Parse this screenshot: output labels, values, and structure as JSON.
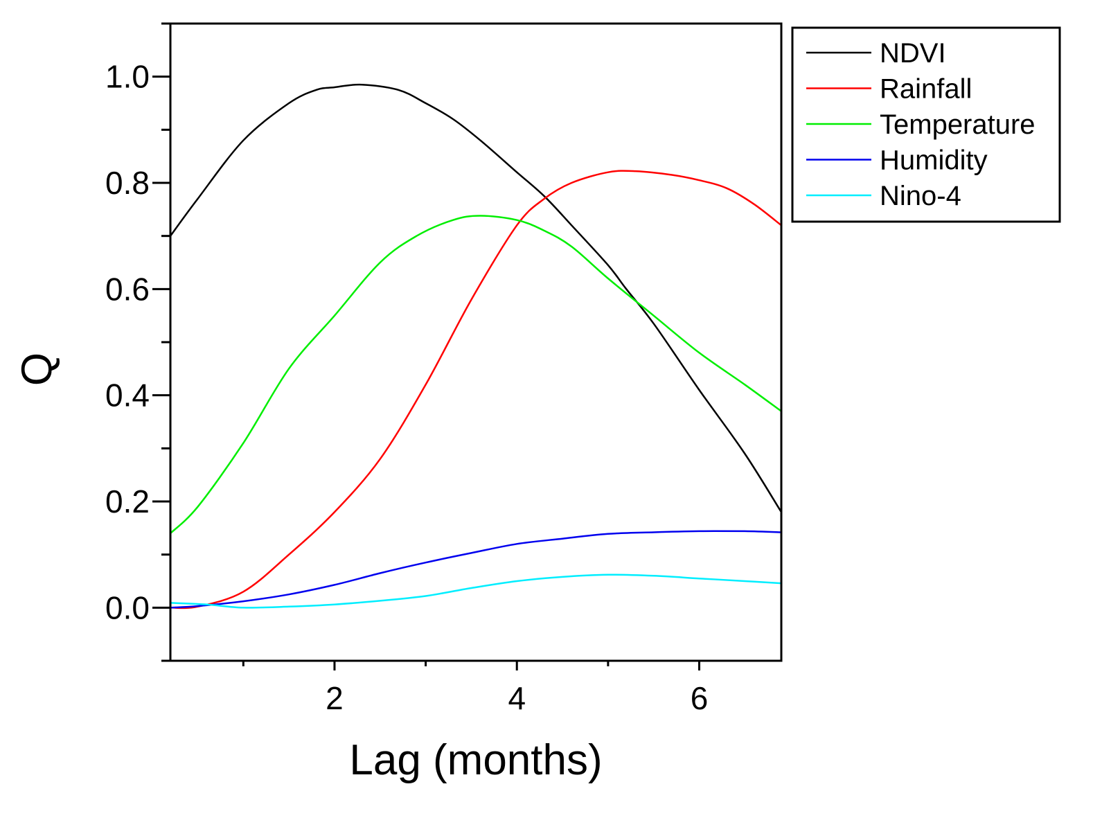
{
  "chart_data": {
    "type": "line",
    "title": "",
    "xlabel": "Lag (months)",
    "ylabel": "Q",
    "xlim": [
      0.2,
      6.9
    ],
    "ylim": [
      -0.1,
      1.1
    ],
    "xticks": [
      2,
      4,
      6
    ],
    "xtick_labels": [
      "2",
      "4",
      "6"
    ],
    "xminor": [
      1,
      3,
      5
    ],
    "yticks": [
      0.0,
      0.2,
      0.4,
      0.6,
      0.8,
      1.0
    ],
    "ytick_labels": [
      "0.0",
      "0.2",
      "0.4",
      "0.6",
      "0.8",
      "1.0"
    ],
    "yminor": [
      -0.1,
      0.1,
      0.3,
      0.5,
      0.7,
      0.9,
      1.1
    ],
    "grid": false,
    "legend_position": "outside-top-right",
    "series": [
      {
        "name": "NDVI",
        "color": "#000000",
        "x": [
          0.2,
          0.5,
          1.0,
          1.5,
          1.8,
          2.0,
          2.3,
          2.7,
          3.0,
          3.3,
          3.6,
          4.0,
          4.3,
          4.6,
          5.0,
          5.2,
          5.5,
          6.0,
          6.5,
          6.9
        ],
        "y": [
          0.7,
          0.77,
          0.88,
          0.95,
          0.975,
          0.98,
          0.985,
          0.975,
          0.95,
          0.92,
          0.88,
          0.82,
          0.775,
          0.72,
          0.645,
          0.6,
          0.535,
          0.41,
          0.29,
          0.18
        ]
      },
      {
        "name": "Rainfall",
        "color": "#ff0000",
        "x": [
          0.2,
          0.5,
          1.0,
          1.5,
          2.0,
          2.5,
          3.0,
          3.5,
          4.0,
          4.3,
          4.6,
          5.0,
          5.3,
          5.7,
          6.0,
          6.3,
          6.6,
          6.9
        ],
        "y": [
          0.0,
          0.002,
          0.03,
          0.1,
          0.18,
          0.28,
          0.42,
          0.58,
          0.72,
          0.77,
          0.8,
          0.82,
          0.822,
          0.815,
          0.805,
          0.79,
          0.76,
          0.72
        ]
      },
      {
        "name": "Temperature",
        "color": "#00ee00",
        "x": [
          0.2,
          0.5,
          1.0,
          1.5,
          2.0,
          2.5,
          2.9,
          3.3,
          3.6,
          4.0,
          4.3,
          4.6,
          5.0,
          5.5,
          6.0,
          6.5,
          6.9
        ],
        "y": [
          0.14,
          0.19,
          0.31,
          0.45,
          0.55,
          0.65,
          0.7,
          0.73,
          0.738,
          0.73,
          0.71,
          0.68,
          0.62,
          0.55,
          0.48,
          0.42,
          0.37
        ]
      },
      {
        "name": "Humidity",
        "color": "#0000ee",
        "x": [
          0.2,
          0.5,
          1.0,
          1.5,
          2.0,
          2.5,
          3.0,
          3.5,
          4.0,
          4.5,
          5.0,
          5.5,
          6.0,
          6.5,
          6.9
        ],
        "y": [
          0.0,
          0.003,
          0.012,
          0.025,
          0.043,
          0.065,
          0.085,
          0.103,
          0.12,
          0.13,
          0.139,
          0.142,
          0.144,
          0.144,
          0.142
        ]
      },
      {
        "name": "Nino-4",
        "color": "#00eeff",
        "x": [
          0.2,
          0.6,
          1.0,
          1.5,
          2.0,
          2.5,
          3.0,
          3.5,
          4.0,
          4.5,
          5.0,
          5.5,
          6.0,
          6.5,
          6.9
        ],
        "y": [
          0.009,
          0.006,
          0.0,
          0.002,
          0.006,
          0.013,
          0.022,
          0.037,
          0.05,
          0.058,
          0.062,
          0.06,
          0.055,
          0.05,
          0.046
        ]
      }
    ]
  }
}
